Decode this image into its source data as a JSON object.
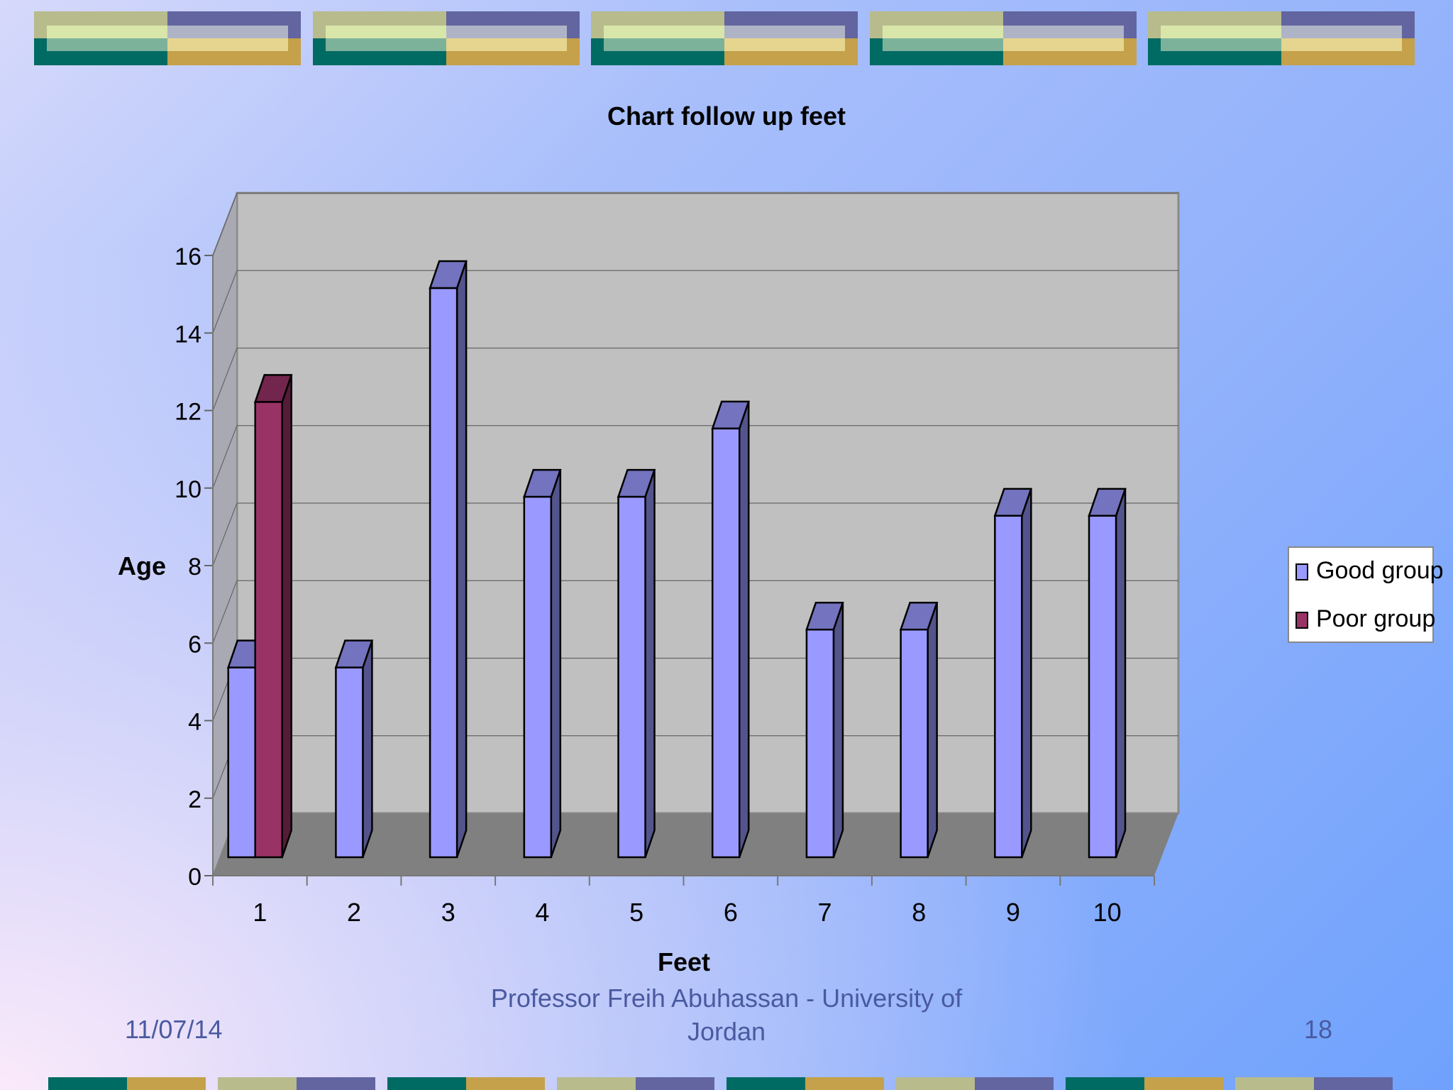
{
  "slide": {
    "date": "11/07/14",
    "footer": "Professor Freih Abuhassan - University of\nJordan",
    "page_number": "18"
  },
  "colors": {
    "good": "#9999ff",
    "poor": "#993366",
    "wall": "#c0c0c0",
    "floor": "#808080"
  },
  "chart_data": {
    "type": "bar",
    "title": "Chart follow up feet",
    "xlabel": "Feet",
    "ylabel": "Age",
    "categories": [
      "1",
      "2",
      "3",
      "4",
      "5",
      "6",
      "7",
      "8",
      "9",
      "10"
    ],
    "series": [
      {
        "name": "Good group",
        "color": "#9999ff",
        "values": [
          5,
          5,
          15,
          9.5,
          9.5,
          11.3,
          6,
          6,
          9,
          9
        ]
      },
      {
        "name": "Poor group",
        "color": "#993366",
        "values": [
          12,
          null,
          null,
          null,
          null,
          null,
          null,
          null,
          null,
          null
        ]
      }
    ],
    "ylim": [
      0,
      16
    ],
    "yticks": [
      "0",
      "2",
      "4",
      "6",
      "8",
      "10",
      "12",
      "14",
      "16"
    ],
    "grid": true,
    "legend": "right"
  }
}
